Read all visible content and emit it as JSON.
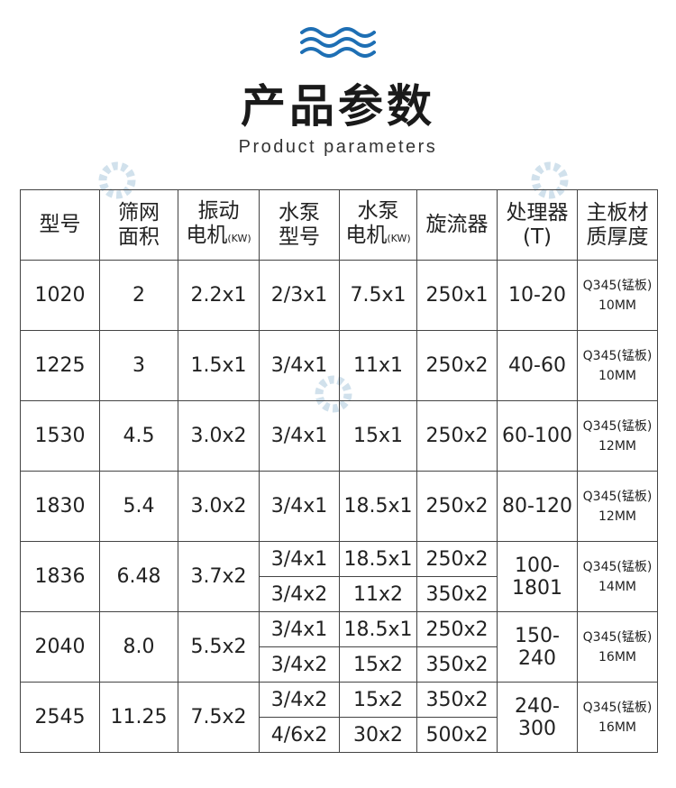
{
  "header": {
    "title": "产品参数",
    "subtitle": "Product parameters",
    "icon": "waves-icon",
    "accent": "#1e6fb4"
  },
  "columns": [
    {
      "line1": "型号",
      "line2": "",
      "unit": ""
    },
    {
      "line1": "筛网",
      "line2": "面积",
      "unit": ""
    },
    {
      "line1": "振动",
      "line2": "电机",
      "unit": "(KW)"
    },
    {
      "line1": "水泵",
      "line2": "型号",
      "unit": ""
    },
    {
      "line1": "水泵",
      "line2": "电机",
      "unit": "(KW)"
    },
    {
      "line1": "旋流器",
      "line2": "",
      "unit": ""
    },
    {
      "line1": "处理器",
      "line2": "(T)",
      "unit": ""
    },
    {
      "line1": "主板材",
      "line2": "质厚度",
      "unit": ""
    }
  ],
  "rows": [
    {
      "model": "1020",
      "area": "2",
      "vib": "2.2x1",
      "pumps": [
        {
          "model": "2/3x1",
          "motor": "7.5x1",
          "cyclone": "250x1"
        }
      ],
      "capacity": "10-20",
      "material": "Q345(锰板)",
      "thickness": "10MM"
    },
    {
      "model": "1225",
      "area": "3",
      "vib": "1.5x1",
      "pumps": [
        {
          "model": "3/4x1",
          "motor": "11x1",
          "cyclone": "250x2"
        }
      ],
      "capacity": "40-60",
      "material": "Q345(锰板)",
      "thickness": "10MM"
    },
    {
      "model": "1530",
      "area": "4.5",
      "vib": "3.0x2",
      "pumps": [
        {
          "model": "3/4x1",
          "motor": "15x1",
          "cyclone": "250x2"
        }
      ],
      "capacity": "60-100",
      "material": "Q345(锰板)",
      "thickness": "12MM"
    },
    {
      "model": "1830",
      "area": "5.4",
      "vib": "3.0x2",
      "pumps": [
        {
          "model": "3/4x1",
          "motor": "18.5x1",
          "cyclone": "250x2"
        }
      ],
      "capacity": "80-120",
      "material": "Q345(锰板)",
      "thickness": "12MM"
    },
    {
      "model": "1836",
      "area": "6.48",
      "vib": "3.7x2",
      "pumps": [
        {
          "model": "3/4x1",
          "motor": "18.5x1",
          "cyclone": "250x2"
        },
        {
          "model": "3/4x2",
          "motor": "11x2",
          "cyclone": "350x2"
        }
      ],
      "capacity": "100-1801",
      "material": "Q345(锰板)",
      "thickness": "14MM"
    },
    {
      "model": "2040",
      "area": "8.0",
      "vib": "5.5x2",
      "pumps": [
        {
          "model": "3/4x1",
          "motor": "18.5x1",
          "cyclone": "250x2"
        },
        {
          "model": "3/4x2",
          "motor": "15x2",
          "cyclone": "350x2"
        }
      ],
      "capacity": "150-240",
      "material": "Q345(锰板)",
      "thickness": "16MM"
    },
    {
      "model": "2545",
      "area": "11.25",
      "vib": "7.5x2",
      "pumps": [
        {
          "model": "3/4x2",
          "motor": "15x2",
          "cyclone": "350x2"
        },
        {
          "model": "4/6x2",
          "motor": "30x2",
          "cyclone": "500x2"
        }
      ],
      "capacity": "240-300",
      "material": "Q345(锰板)",
      "thickness": "16MM"
    }
  ]
}
